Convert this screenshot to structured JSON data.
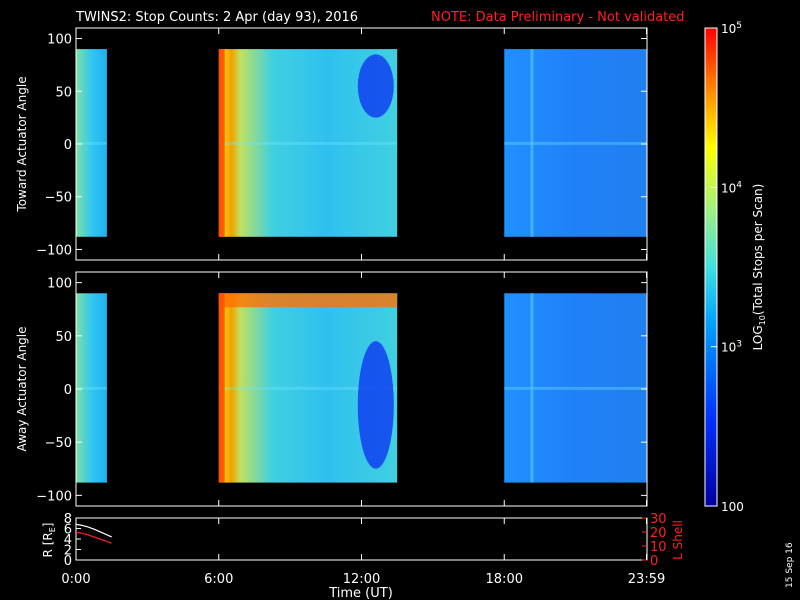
{
  "header": {
    "title": "TWINS2: Stop Counts:  2 Apr (day  93), 2016",
    "note": "NOTE: Data Preliminary - Not validated"
  },
  "footer": {
    "stamp": "15 Sep 16"
  },
  "colors": {
    "background": "#000000",
    "axes": "#ffffff",
    "note": "#ff2020",
    "r_line": "#ffffff",
    "l_shell_line": "#ff2020",
    "colorscale": [
      "#0000a0",
      "#0030ff",
      "#00a0ff",
      "#40e0e0",
      "#a0f080",
      "#ffff00",
      "#ff8000",
      "#ff0000"
    ]
  },
  "chart_data": [
    {
      "type": "heatmap",
      "name": "toward",
      "ylabel": "Toward Actuator Angle",
      "xlim": [
        0,
        24
      ],
      "ylim": [
        -110,
        110
      ],
      "yticks": [
        100,
        50,
        0,
        -50,
        -100
      ],
      "ytick_labels": [
        "100",
        "50",
        "0",
        "−50",
        "−100"
      ],
      "data_y_range": [
        -88,
        90
      ],
      "data_segments": [
        [
          0.0,
          1.3
        ],
        [
          6.0,
          13.5
        ],
        [
          18.0,
          23.98
        ]
      ]
    },
    {
      "type": "heatmap",
      "name": "away",
      "ylabel": "Away Actuator Angle",
      "xlim": [
        0,
        24
      ],
      "ylim": [
        -110,
        110
      ],
      "yticks": [
        100,
        50,
        0,
        -50,
        -100
      ],
      "ytick_labels": [
        "100",
        "50",
        "0",
        "−50",
        "−100"
      ],
      "data_y_range": [
        -88,
        90
      ],
      "data_segments": [
        [
          0.0,
          1.3
        ],
        [
          6.0,
          13.5
        ],
        [
          18.0,
          23.98
        ]
      ]
    },
    {
      "type": "line",
      "name": "ephemeris",
      "ylabel_left": "R [R",
      "ylabel_left_sub": "E",
      "ylabel_left_end": "]",
      "ylabel_right": "L Shell",
      "xlabel": "Time (UT)",
      "xlim": [
        0,
        24
      ],
      "xticks": [
        0,
        6,
        12,
        18,
        23.98
      ],
      "xtick_labels": [
        "0:00",
        "6:00",
        "12:00",
        "18:00",
        "23:59"
      ],
      "ylim_left": [
        0,
        8
      ],
      "yticks_left": [
        0,
        2,
        4,
        6,
        8
      ],
      "ylim_right": [
        0,
        30
      ],
      "yticks_right": [
        0,
        10,
        20,
        30
      ],
      "series": [
        {
          "axis": "left",
          "color": "#ffffff",
          "x": [
            0.0,
            0.25,
            0.5,
            0.75,
            1.0,
            1.25,
            1.5
          ],
          "y": [
            6.8,
            6.6,
            6.3,
            5.9,
            5.4,
            4.9,
            4.4
          ]
        },
        {
          "axis": "left",
          "color": "#ff2020",
          "x": [
            0.0,
            0.25,
            0.5,
            0.75,
            1.0,
            1.25,
            1.5
          ],
          "y": [
            5.3,
            5.1,
            4.8,
            4.4,
            4.0,
            3.6,
            3.2
          ]
        }
      ]
    }
  ],
  "colorbar": {
    "label_pre": "LOG",
    "label_sub": "10",
    "label_post": "(Total Stops per Scan)",
    "scale": "log",
    "range": [
      100,
      100000
    ],
    "ticks": [
      {
        "value": 100000,
        "base": "10",
        "exp": "5"
      },
      {
        "value": 10000,
        "base": "10",
        "exp": "4"
      },
      {
        "value": 1000,
        "base": "10",
        "exp": "3"
      },
      {
        "value": 100,
        "base": "100",
        "exp": ""
      }
    ]
  }
}
